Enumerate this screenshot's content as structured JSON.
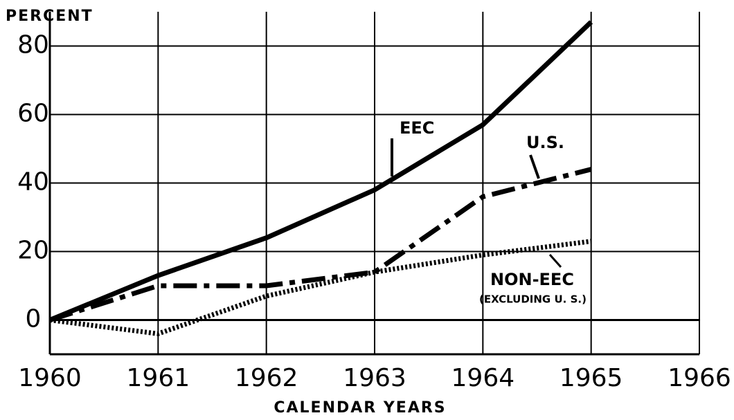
{
  "chart_data": {
    "type": "line",
    "ylabel": "PERCENT",
    "xlabel": "CALENDAR YEARS",
    "x": [
      1960,
      1961,
      1962,
      1963,
      1964,
      1965
    ],
    "series": [
      {
        "name": "EEC",
        "color": "#000000",
        "dash": "solid",
        "values": [
          0,
          13,
          24,
          38,
          57,
          87
        ]
      },
      {
        "name": "U.S.",
        "color": "#000000",
        "dash": "dashdot",
        "values": [
          0,
          10,
          10,
          14,
          36,
          44
        ]
      },
      {
        "name": "NON-EEC",
        "color": "#000000",
        "dash": "dotted",
        "values": [
          0,
          -4,
          7,
          14,
          19,
          23
        ]
      }
    ],
    "annotations": [
      "EEC",
      "U.S.",
      "NON-EEC",
      "(EXCLUDING U. S.)"
    ],
    "xlim": [
      1960,
      1966
    ],
    "xticks": [
      1960,
      1961,
      1962,
      1963,
      1964,
      1965,
      1966
    ],
    "ylim": [
      -10,
      90
    ],
    "yticks": [
      0,
      20,
      40,
      60,
      80
    ],
    "grid": true
  }
}
